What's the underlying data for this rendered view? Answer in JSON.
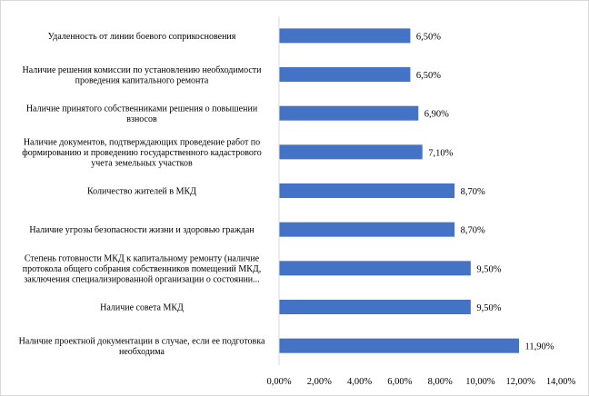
{
  "chart_data": {
    "type": "bar",
    "orientation": "horizontal",
    "categories": [
      [
        "Удаленность от линии боевого соприкосновения"
      ],
      [
        "Наличие решения комиссии по установлению необходимости",
        "проведения капитального ремонта"
      ],
      [
        "Наличие принятого собственниками решения о повышении",
        "взносов"
      ],
      [
        "Наличие документов, подтверждающих проведение работ по",
        "формированию и проведению государственного кадастрового",
        "учета земельных участков"
      ],
      [
        "Количество жителей в МКД"
      ],
      [
        "Наличие угрозы безопасности жизни и здоровью граждан"
      ],
      [
        "Степень готовности МКД к капитальному ремонту (наличие",
        "протокола общего собрания собственников помещений МКД,",
        "заключения специализированной организации о состоянии..."
      ],
      [
        "Наличие совета МКД"
      ],
      [
        "Наличие проектной документации в случае, если ее подготовка",
        "необходима"
      ]
    ],
    "values": [
      6.5,
      6.5,
      6.9,
      7.1,
      8.7,
      8.7,
      9.5,
      9.5,
      11.9
    ],
    "value_labels": [
      "6,50%",
      "6,50%",
      "6,90%",
      "7,10%",
      "8,70%",
      "8,70%",
      "9,50%",
      "9,50%",
      "11,90%"
    ],
    "xlim": [
      0,
      14
    ],
    "xticks": [
      0,
      2,
      4,
      6,
      8,
      10,
      12,
      14
    ],
    "xtick_labels": [
      "0,00%",
      "2,00%",
      "4,00%",
      "6,00%",
      "8,00%",
      "10,00%",
      "12,00%",
      "14,00%"
    ],
    "title": "",
    "xlabel": "",
    "ylabel": "",
    "grid": false,
    "legend": "none",
    "bar_color": "#4472C4"
  }
}
